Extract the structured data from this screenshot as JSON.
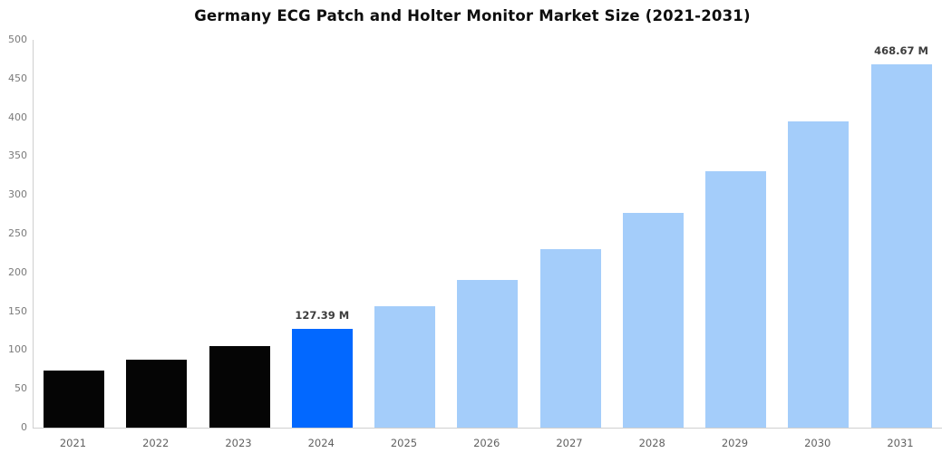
{
  "chart_data": {
    "type": "bar",
    "title": "Germany ECG Patch and Holter Monitor Market Size (2021-2031)",
    "categories": [
      "2021",
      "2022",
      "2023",
      "2024",
      "2025",
      "2026",
      "2027",
      "2028",
      "2029",
      "2030",
      "2031"
    ],
    "values": [
      74,
      88,
      105,
      127.39,
      156,
      190,
      230,
      277,
      331,
      395,
      468.67
    ],
    "bar_color_keys": [
      "historical",
      "historical",
      "historical",
      "current",
      "forecast",
      "forecast",
      "forecast",
      "forecast",
      "forecast",
      "forecast",
      "forecast"
    ],
    "annotations": [
      {
        "category": "2024",
        "text": "127.39 M"
      },
      {
        "category": "2031",
        "text": "468.67 M"
      }
    ],
    "xlabel": "",
    "ylabel": "",
    "ylim": [
      0,
      500
    ],
    "yticks": [
      0,
      50,
      100,
      150,
      200,
      250,
      300,
      350,
      400,
      450,
      500
    ],
    "grid": false,
    "legend": null
  },
  "colors": {
    "historical": "#050505",
    "current": "#0268FF",
    "forecast": "#A4CDFA",
    "axis_spine": "#cfcfcf",
    "y_tick_label": "#7a7a7a",
    "x_tick_label": "#616161",
    "annotation": "#3d3d3d",
    "title": "#0e0e0e",
    "background": "#ffffff"
  }
}
